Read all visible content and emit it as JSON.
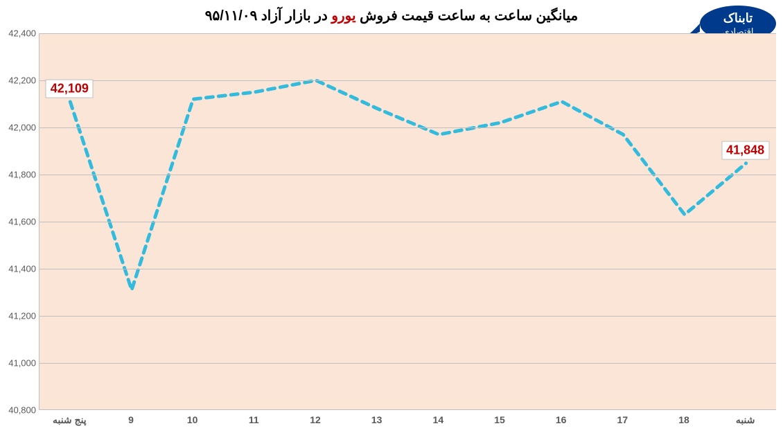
{
  "chart": {
    "type": "line",
    "title_parts": {
      "pre": "میانگین ساعت به ساعت قیمت فروش ",
      "accent": "یورو",
      "post": " در بازار آزاد ۹۵/۱۱/۰۹"
    },
    "title_fontsize": 20,
    "background_color": "#ffffff",
    "plot_background": "#fbe5d6",
    "grid_color": "#bfbfbf",
    "line_color": "#33bbdd",
    "line_width": 5,
    "dash_pattern": "10,8",
    "accent_color": "#c00000",
    "tick_font_color": "#595959",
    "ylim": [
      40800,
      42400
    ],
    "ytick_step": 200,
    "y_ticks": [
      "40,800",
      "41,000",
      "41,200",
      "41,400",
      "41,600",
      "41,800",
      "42,000",
      "42,200",
      "42,400"
    ],
    "x_categories": [
      "پنج شنبه",
      "9",
      "10",
      "11",
      "12",
      "13",
      "14",
      "15",
      "16",
      "17",
      "18",
      "شنبه"
    ],
    "values": [
      42109,
      41310,
      42120,
      42150,
      42200,
      42080,
      41970,
      42020,
      42110,
      41970,
      41630,
      41848
    ],
    "data_labels": [
      {
        "index": 0,
        "text": "42,109"
      },
      {
        "index": 11,
        "text": "41,848"
      }
    ],
    "logo_text_top": "تابناک",
    "logo_text_bottom": "اقتصادی",
    "logo_color": "#003a8c"
  }
}
